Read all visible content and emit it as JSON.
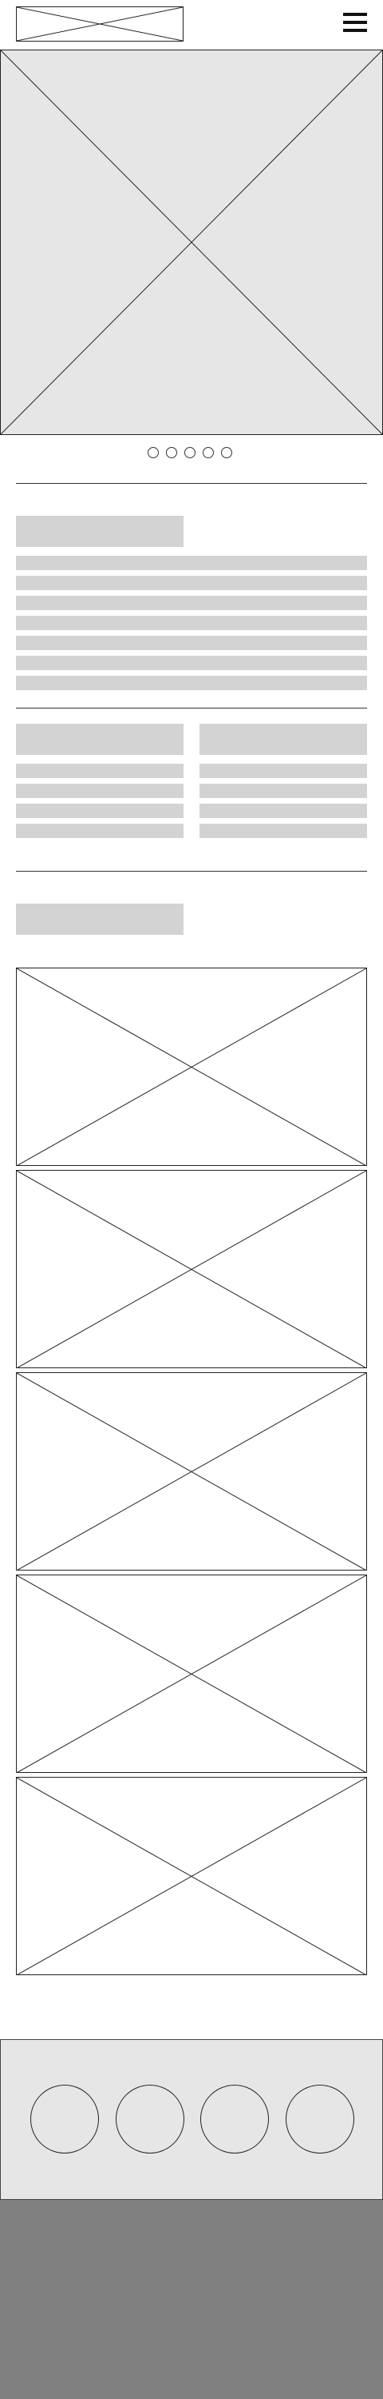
{
  "header": {
    "logo_icon": "logo-placeholder-image",
    "menu_icon": "hamburger-menu-icon"
  },
  "hero": {
    "image_icon": "hero-placeholder-image",
    "slide_count": 5,
    "active_slide": null
  },
  "colors": {
    "placeholder_fill": "#e6e6e6",
    "text_bar": "#d3d3d3",
    "footer": "#808080",
    "line": "#222222"
  },
  "section_intro": {
    "heading": "",
    "paragraph_lines": 7
  },
  "section_columns": {
    "left": {
      "heading": "",
      "lines": 4
    },
    "right": {
      "heading": "",
      "lines": 4
    }
  },
  "section_gallery": {
    "heading": "",
    "items": [
      {
        "icon": "gallery-placeholder-image-1"
      },
      {
        "icon": "gallery-placeholder-image-2"
      },
      {
        "icon": "gallery-placeholder-image-3"
      },
      {
        "icon": "gallery-placeholder-image-4"
      },
      {
        "icon": "gallery-placeholder-image-5"
      }
    ]
  },
  "social": {
    "icons": [
      "social-icon-1",
      "social-icon-2",
      "social-icon-3",
      "social-icon-4"
    ]
  },
  "footer": {}
}
